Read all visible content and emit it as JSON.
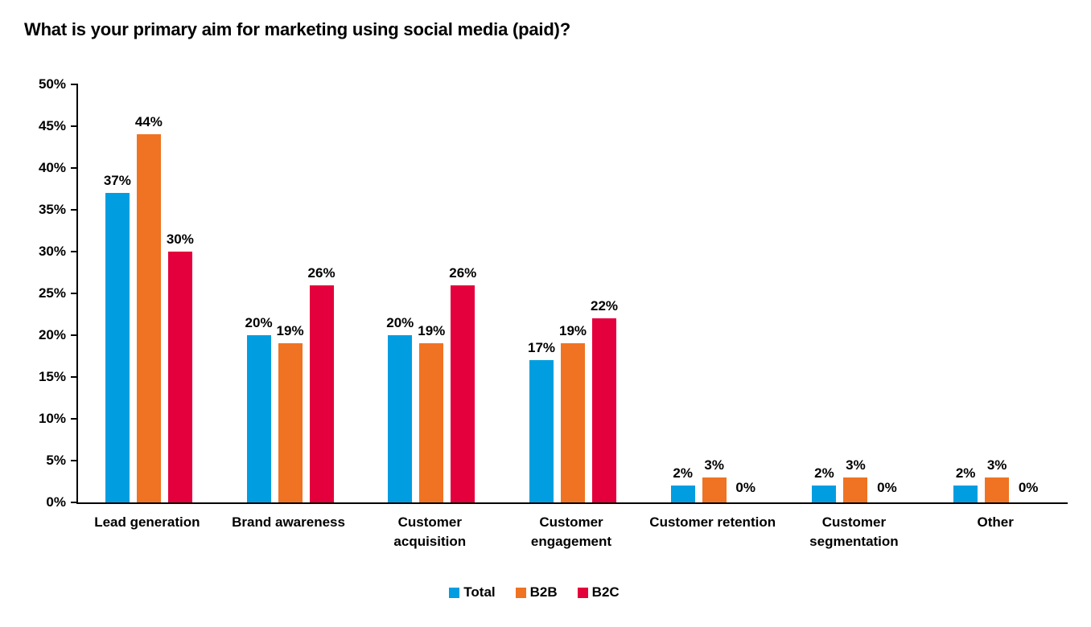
{
  "chart_data": {
    "type": "bar",
    "title": "What is your primary aim for marketing using social media (paid)?",
    "categories": [
      "Lead generation",
      "Brand awareness",
      "Customer\nacquisition",
      "Customer\nengagement",
      "Customer retention",
      "Customer\nsegmentation",
      "Other"
    ],
    "series": [
      {
        "name": "Total",
        "color": "#009EE0",
        "values": [
          37,
          20,
          20,
          17,
          2,
          2,
          2
        ],
        "data_labels": [
          "37%",
          "20%",
          "20%",
          "17%",
          "2%",
          "2%",
          "2%"
        ]
      },
      {
        "name": "B2B",
        "color": "#EF7322",
        "values": [
          44,
          19,
          19,
          19,
          3,
          3,
          3
        ],
        "data_labels": [
          "44%",
          "19%",
          "19%",
          "19%",
          "3%",
          "3%",
          "3%"
        ]
      },
      {
        "name": "B2C",
        "color": "#E4003C",
        "values": [
          30,
          26,
          26,
          22,
          0,
          0,
          0
        ],
        "data_labels": [
          "30%",
          "26%",
          "26%",
          "22%",
          "0%",
          "0%",
          "0%"
        ]
      }
    ],
    "y_axis": {
      "min": 0,
      "max": 50,
      "step": 5,
      "unit": "%",
      "tick_labels": [
        "0%",
        "5%",
        "10%",
        "15%",
        "20%",
        "25%",
        "30%",
        "35%",
        "40%",
        "45%",
        "50%"
      ]
    },
    "axis_color": "#000000",
    "text_color": "#000000",
    "background": "#ffffff",
    "grid": "off",
    "legend_position": "bottom"
  }
}
